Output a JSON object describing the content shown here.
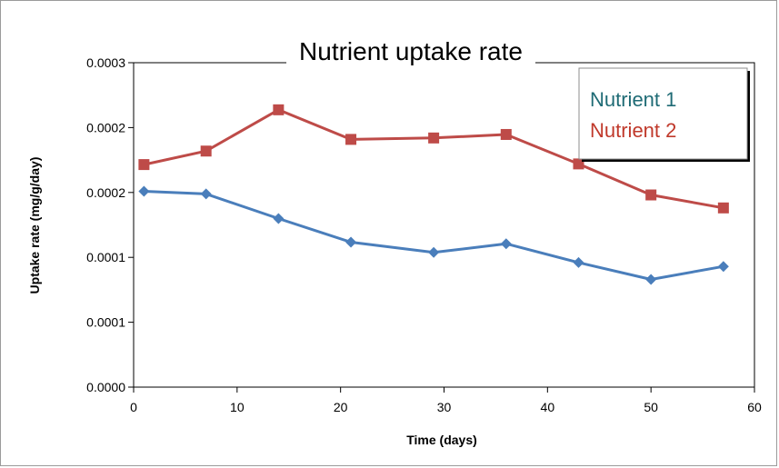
{
  "chart_data": {
    "type": "line",
    "title": "Nutrient uptake rate",
    "xlabel": "Time (days)",
    "ylabel": "Uptake rate (mg/g/day)",
    "xlim": [
      0,
      60
    ],
    "ylim": [
      0,
      0.00025
    ],
    "x_ticks": [
      0,
      10,
      20,
      30,
      40,
      50,
      60
    ],
    "x_tick_labels": [
      "0",
      "10",
      "20",
      "30",
      "40",
      "50",
      "60"
    ],
    "y_ticks": [
      0,
      5e-05,
      0.0001,
      0.00015,
      0.0002,
      0.00025
    ],
    "y_tick_labels": [
      "0.0000",
      "0.0001",
      "0.0001",
      "0.0002",
      "0.0002",
      "0.0003"
    ],
    "grid": false,
    "legend_position": "top-right",
    "series": [
      {
        "name": "Nutrient 1",
        "color": "#4a7ebb",
        "label_color": "#1f6b75",
        "marker": "diamond",
        "x": [
          1,
          7,
          14,
          21,
          29,
          36,
          43,
          50,
          57
        ],
        "values": [
          0.0001509,
          0.0001489,
          0.0001299,
          0.0001117,
          0.0001038,
          0.0001105,
          9.6e-05,
          8.3e-05,
          9.3e-05
        ]
      },
      {
        "name": "Nutrient 2",
        "color": "#be4b48",
        "label_color": "#c0392b",
        "marker": "square",
        "x": [
          1,
          7,
          14,
          21,
          29,
          36,
          43,
          50,
          57
        ],
        "values": [
          0.0001715,
          0.0001819,
          0.0002137,
          0.0001909,
          0.000192,
          0.0001947,
          0.000172,
          0.0001481,
          0.0001381
        ]
      }
    ]
  }
}
